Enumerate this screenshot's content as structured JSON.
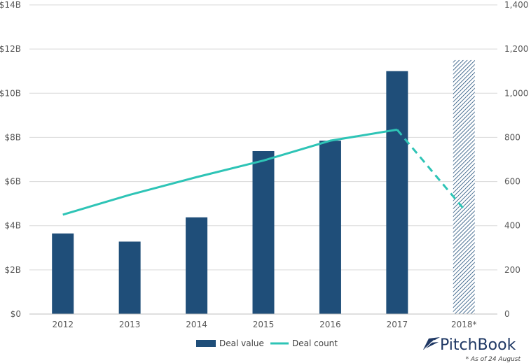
{
  "chart_data": {
    "type": "bar",
    "categories": [
      "2012",
      "2013",
      "2014",
      "2015",
      "2016",
      "2017",
      "2018*"
    ],
    "series": [
      {
        "name": "Deal value",
        "type": "bar",
        "axis": "left",
        "values": [
          3.65,
          3.28,
          4.38,
          7.38,
          7.85,
          11.0,
          11.5
        ],
        "partial_last": true
      },
      {
        "name": "Deal count",
        "type": "line",
        "axis": "right",
        "values": [
          450,
          540,
          620,
          695,
          785,
          835,
          475
        ],
        "partial_last": true
      }
    ],
    "y_left": {
      "ylim": [
        0,
        14
      ],
      "ticks": [
        0,
        2,
        4,
        6,
        8,
        10,
        12,
        14
      ],
      "tick_labels": [
        "$0",
        "$2B",
        "$4B",
        "$6B",
        "$8B",
        "$10B",
        "$12B",
        "$14B"
      ]
    },
    "y_right": {
      "ylim": [
        0,
        1400
      ],
      "ticks": [
        0,
        200,
        400,
        600,
        800,
        1000,
        1200,
        1400
      ],
      "tick_labels": [
        "0",
        "200",
        "400",
        "600",
        "800",
        "1,000",
        "1,200",
        "1,400"
      ]
    },
    "grid": true,
    "legend_position": "bottom-center",
    "title": "",
    "xlabel": "",
    "ylabel": ""
  },
  "colors": {
    "bar": "#1f4e79",
    "line": "#2ec4b6",
    "grid": "#d9d9d9",
    "brand": "#1f3864"
  },
  "legend": {
    "value_label": "Deal value",
    "count_label": "Deal count"
  },
  "brand": {
    "name": "PitchBook",
    "icon": "pitchbook-feather-logo"
  },
  "footnote": "* As of 24 August"
}
